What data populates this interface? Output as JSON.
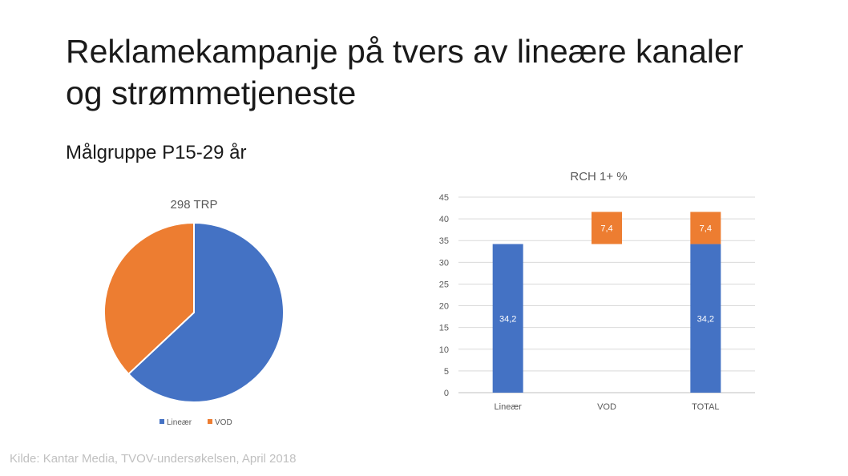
{
  "slide": {
    "title_line1": "Reklamekampanje på tvers av lineære kanaler",
    "title_line2": "og strømmetjeneste",
    "subtitle": "Målgruppe P15-29 år",
    "source": "Kilde: Kantar Media, TVOV-undersøkelsen, April 2018"
  },
  "colors": {
    "blue": "#4472C4",
    "orange": "#ED7D31"
  },
  "chart_data": [
    {
      "type": "pie",
      "title": "298 TRP",
      "slices": [
        {
          "label": "Lineær",
          "value": 63,
          "color": "#4472C4"
        },
        {
          "label": "VOD",
          "value": 37,
          "color": "#ED7D31"
        }
      ],
      "legend": [
        "Lineær",
        "VOD"
      ],
      "legend_position": "bottom"
    },
    {
      "type": "bar",
      "subtype": "waterfall",
      "title": "RCH 1+ %",
      "categories": [
        "Lineær",
        "VOD",
        "TOTAL"
      ],
      "series": [
        {
          "values": [
            34.2,
            null,
            34.2
          ],
          "base": [
            0,
            null,
            0
          ],
          "labels": [
            "34,2",
            "",
            "34,2"
          ],
          "color": "#4472C4"
        },
        {
          "values": [
            null,
            7.4,
            7.4
          ],
          "base": [
            null,
            34.2,
            34.2
          ],
          "labels": [
            "",
            "7,4",
            "7,4"
          ],
          "color": "#ED7D31"
        }
      ],
      "ylim": [
        0,
        45
      ],
      "yticks": [
        "0",
        "5",
        "10",
        "15",
        "20",
        "25",
        "30",
        "35",
        "40",
        "45"
      ],
      "grid": true
    }
  ]
}
